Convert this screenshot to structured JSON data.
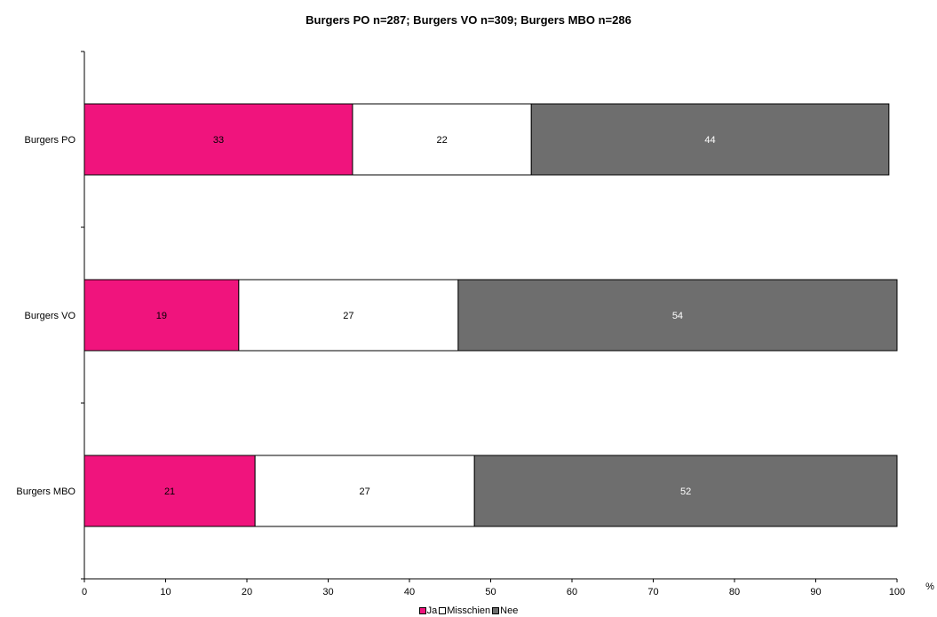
{
  "chart_data": {
    "type": "bar",
    "orientation": "horizontal",
    "stacked": true,
    "title": "Burgers PO n=287; Burgers VO n=309; Burgers MBO n=286",
    "xlabel": "%",
    "ylabel": "",
    "xlim": [
      0,
      100
    ],
    "xticks": [
      0,
      10,
      20,
      30,
      40,
      50,
      60,
      70,
      80,
      90,
      100
    ],
    "categories": [
      "Burgers PO",
      "Burgers VO",
      "Burgers MBO"
    ],
    "series": [
      {
        "name": "Ja",
        "color": "#f0147d",
        "label_color": "#000000",
        "values": [
          33,
          19,
          21
        ]
      },
      {
        "name": "Misschien",
        "color": "#ffffff",
        "label_color": "#000000",
        "values": [
          22,
          27,
          27
        ]
      },
      {
        "name": "Nee",
        "color": "#6e6e6e",
        "label_color": "#ffffff",
        "values": [
          44,
          54,
          52
        ]
      }
    ],
    "grid": false,
    "legend": "bottom"
  }
}
